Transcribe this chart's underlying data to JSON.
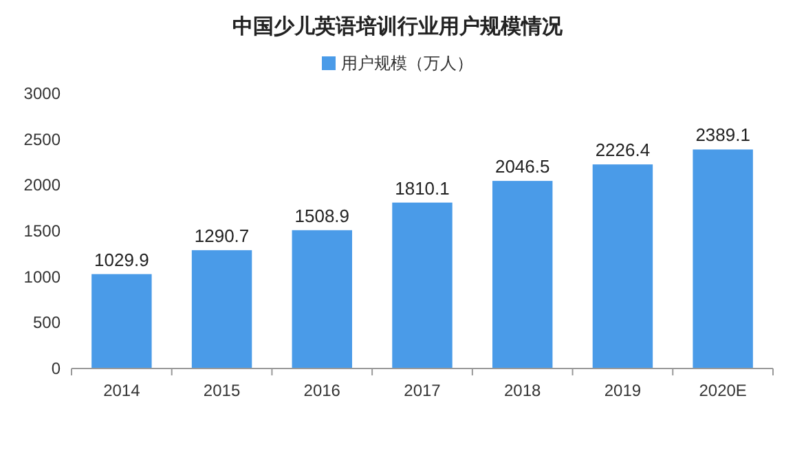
{
  "chart_data": {
    "type": "bar",
    "title": "中国少儿英语培训行业用户规模情况",
    "categories": [
      "2014",
      "2015",
      "2016",
      "2017",
      "2018",
      "2019",
      "2020E"
    ],
    "series": [
      {
        "name": "用户规模（万人）",
        "color": "#4a9be8",
        "values": [
          1029.9,
          1290.7,
          1508.9,
          1810.1,
          2046.5,
          2226.4,
          2389.1
        ]
      }
    ],
    "ylim": [
      0,
      3000
    ],
    "yticks": [
      0,
      500,
      1000,
      1500,
      2000,
      2500,
      3000
    ],
    "data_labels": true,
    "legend": "top",
    "grid": false
  }
}
